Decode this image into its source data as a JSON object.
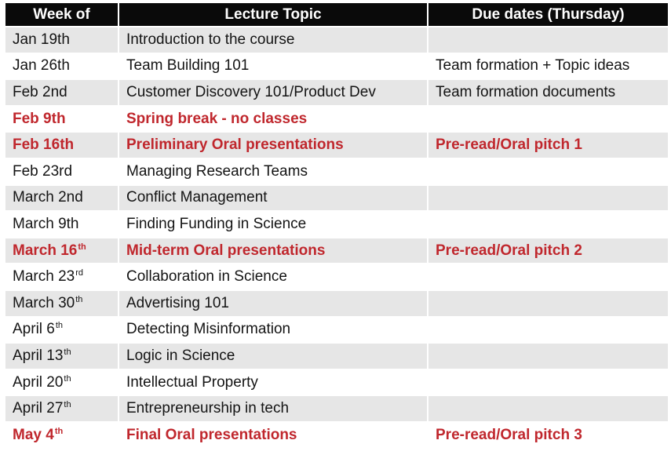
{
  "headers": {
    "week": "Week of",
    "topic": "Lecture Topic",
    "due": "Due dates (Thursday)"
  },
  "rows": [
    {
      "week": "Jan 19th",
      "sup": "",
      "topic": "Introduction to the course",
      "due": "",
      "highlight": false
    },
    {
      "week": "Jan 26th",
      "sup": "",
      "topic": "Team Building 101",
      "due": "Team formation + Topic ideas",
      "highlight": false
    },
    {
      "week": "Feb 2nd",
      "sup": "",
      "topic": "Customer Discovery 101/Product Dev",
      "due": "Team formation documents",
      "highlight": false
    },
    {
      "week": "Feb 9th",
      "sup": "",
      "topic": "Spring break - no classes",
      "due": "",
      "highlight": true
    },
    {
      "week": "Feb 16th",
      "sup": "",
      "topic": "Preliminary Oral presentations",
      "due": "Pre-read/Oral pitch 1",
      "highlight": true
    },
    {
      "week": "Feb 23rd",
      "sup": "",
      "topic": "Managing Research Teams",
      "due": "",
      "highlight": false
    },
    {
      "week": "March 2nd",
      "sup": "",
      "topic": "Conflict Management",
      "due": "",
      "highlight": false
    },
    {
      "week": "March 9th",
      "sup": "",
      "topic": "Finding Funding in Science",
      "due": "",
      "highlight": false
    },
    {
      "week": "March 16",
      "sup": "th",
      "topic": "Mid-term Oral presentations",
      "due": "Pre-read/Oral pitch 2",
      "highlight": true
    },
    {
      "week": "March 23",
      "sup": "rd",
      "topic": "Collaboration in Science",
      "due": "",
      "highlight": false
    },
    {
      "week": "March 30",
      "sup": "th",
      "topic": "Advertising 101",
      "due": "",
      "highlight": false
    },
    {
      "week": "April 6",
      "sup": "th",
      "topic": "Detecting Misinformation",
      "due": "",
      "highlight": false
    },
    {
      "week": "April 13",
      "sup": "th",
      "topic": "Logic in Science",
      "due": "",
      "highlight": false
    },
    {
      "week": "April 20",
      "sup": "th",
      "topic": "Intellectual Property",
      "due": "",
      "highlight": false
    },
    {
      "week": "April 27",
      "sup": "th",
      "topic": "Entrepreneurship in tech",
      "due": "",
      "highlight": false
    },
    {
      "week": "May 4",
      "sup": "th",
      "topic": "Final Oral presentations",
      "due": "Pre-read/Oral pitch 3",
      "highlight": true
    }
  ],
  "colors": {
    "header_bg": "#0a0a0a",
    "stripe": "#e6e6e6",
    "highlight_text": "#c0272d"
  }
}
